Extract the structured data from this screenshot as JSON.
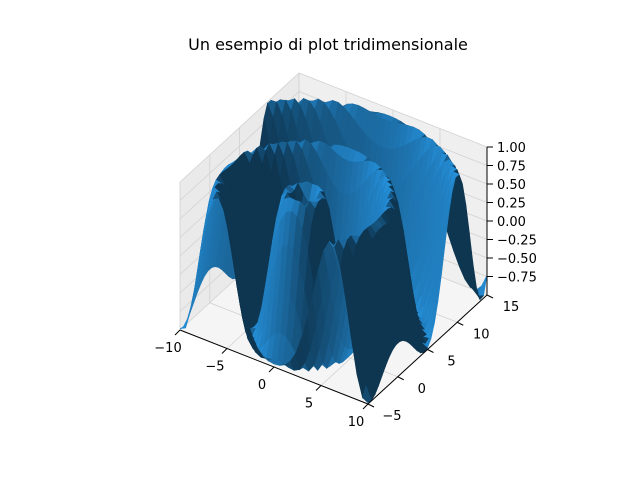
{
  "chart_data": {
    "type": "surface3d",
    "title": "Un esempio di plot tridimensionale",
    "surface_color": "#1f77b4",
    "function": "z = sin(sqrt(x^2 + y^2)) sampled on a grid",
    "x": {
      "label": "",
      "range": [
        -10,
        10
      ],
      "ticks": [
        -10,
        -5,
        0,
        5,
        10
      ]
    },
    "y": {
      "label": "",
      "range": [
        -5,
        15
      ],
      "ticks": [
        -5,
        0,
        5,
        10,
        15
      ]
    },
    "z": {
      "label": "",
      "range": [
        -1,
        1
      ],
      "ticks": [
        -0.75,
        -0.5,
        -0.25,
        0.0,
        0.25,
        0.5,
        0.75,
        1.0
      ],
      "tick_labels": [
        "−0.75",
        "−0.50",
        "−0.25",
        "0.00",
        "0.25",
        "0.50",
        "0.75",
        "1.00"
      ]
    },
    "x_tick_labels": [
      "−10",
      "−5",
      "0",
      "5",
      "10"
    ],
    "y_tick_labels": [
      "−5",
      "0",
      "5",
      "10",
      "15"
    ],
    "grid": true
  }
}
